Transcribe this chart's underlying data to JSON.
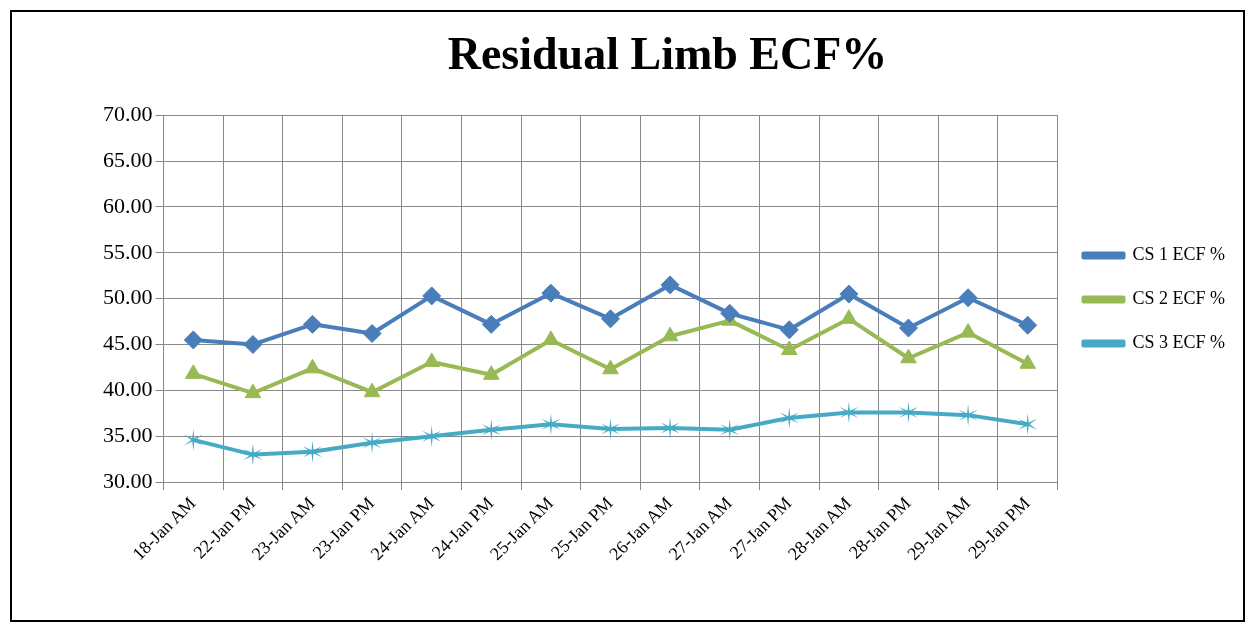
{
  "chart_data": {
    "type": "line",
    "title": "Residual Limb ECF%",
    "categories": [
      "18-Jan AM",
      "22-Jan PM",
      "23-Jan AM",
      "23-Jan PM",
      "24-Jan AM",
      "24-Jan PM",
      "25-Jan AM",
      "25-Jan PM",
      "26-Jan AM",
      "27-Jan AM",
      "27-Jan PM",
      "28-Jan AM",
      "28-Jan PM",
      "29-Jan AM",
      "29-Jan PM"
    ],
    "series": [
      {
        "name": "CS 1 ECF %",
        "color": "#4a7ebb",
        "marker": "diamond",
        "values": [
          45.5,
          45.0,
          47.2,
          46.2,
          50.3,
          47.2,
          50.6,
          47.8,
          51.5,
          48.4,
          46.6,
          50.5,
          46.8,
          50.1,
          47.1
        ]
      },
      {
        "name": "CS 2 ECF %",
        "color": "#98b954",
        "marker": "triangle",
        "values": [
          41.8,
          39.7,
          42.4,
          39.8,
          43.1,
          41.7,
          45.5,
          42.3,
          45.9,
          47.6,
          44.4,
          47.8,
          43.5,
          46.3,
          42.9
        ]
      },
      {
        "name": "CS 3 ECF %",
        "color": "#46aac5",
        "marker": "cross",
        "values": [
          34.6,
          33.0,
          33.3,
          34.3,
          35.0,
          35.7,
          36.3,
          35.8,
          35.9,
          35.7,
          37.0,
          37.6,
          37.6,
          37.3,
          36.3
        ]
      }
    ],
    "ylim": [
      30,
      70
    ],
    "yticks": [
      {
        "value": 30,
        "label": "30.00"
      },
      {
        "value": 35,
        "label": "35.00"
      },
      {
        "value": 40,
        "label": "40.00"
      },
      {
        "value": 45,
        "label": "45.00"
      },
      {
        "value": 50,
        "label": "50.00"
      },
      {
        "value": 55,
        "label": "55.00"
      },
      {
        "value": 60,
        "label": "60.00"
      },
      {
        "value": 65,
        "label": "65.00"
      },
      {
        "value": 70,
        "label": "70.00"
      }
    ],
    "grid": true,
    "legend": "right",
    "line_style": "solid"
  }
}
